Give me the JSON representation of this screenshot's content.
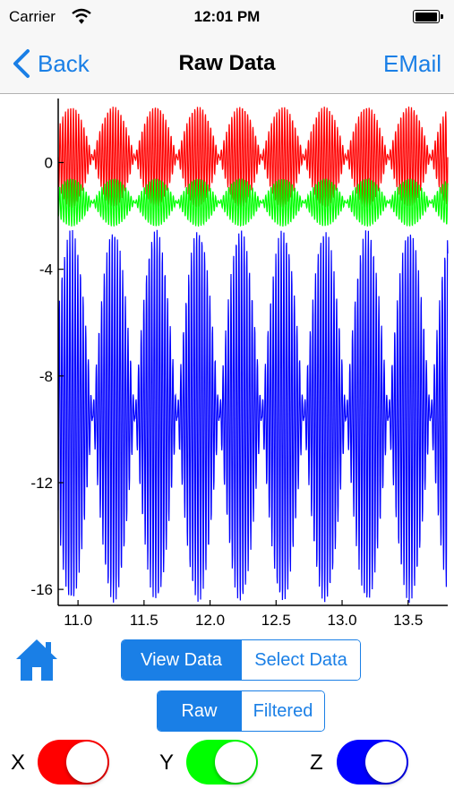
{
  "status": {
    "carrier": "Carrier",
    "time": "12:01 PM"
  },
  "nav": {
    "back_label": "Back",
    "title": "Raw Data",
    "email_label": "EMail"
  },
  "chart_data": {
    "type": "line",
    "xlabel": "",
    "ylabel": "",
    "xlim": [
      10.85,
      13.8
    ],
    "ylim": [
      -16.6,
      2.4
    ],
    "xticks": [
      11.0,
      11.5,
      12.0,
      12.5,
      13.0,
      13.5
    ],
    "xtick_labels": [
      "11.0",
      "11.5",
      "12.0",
      "12.5",
      "13.0",
      "13.5"
    ],
    "yticks": [
      0,
      -4,
      -8,
      -12,
      -16
    ],
    "ytick_labels": [
      "0",
      "-4",
      "-8",
      "-12",
      "-16"
    ],
    "grid": false,
    "series": [
      {
        "color": "#ff0000",
        "center": 0.2,
        "amplitude": 1.9,
        "envelope_period": 0.32,
        "carrier_period": 0.02
      },
      {
        "color": "#00ff00",
        "center": -1.5,
        "amplitude": 0.9,
        "envelope_period": 0.32,
        "carrier_period": 0.02
      },
      {
        "color": "#0000ff",
        "center": -9.5,
        "amplitude": 7.0,
        "envelope_period": 0.32,
        "carrier_period": 0.02
      }
    ]
  },
  "controls": {
    "view_segment": [
      "View Data",
      "Select Data"
    ],
    "view_selected": 0,
    "data_segment": [
      "Raw",
      "Filtered"
    ],
    "data_selected": 0
  },
  "toggles": [
    {
      "label": "X",
      "color": "#ff0000",
      "on": true
    },
    {
      "label": "Y",
      "color": "#00ff00",
      "on": true
    },
    {
      "label": "Z",
      "color": "#0000ff",
      "on": true
    }
  ]
}
